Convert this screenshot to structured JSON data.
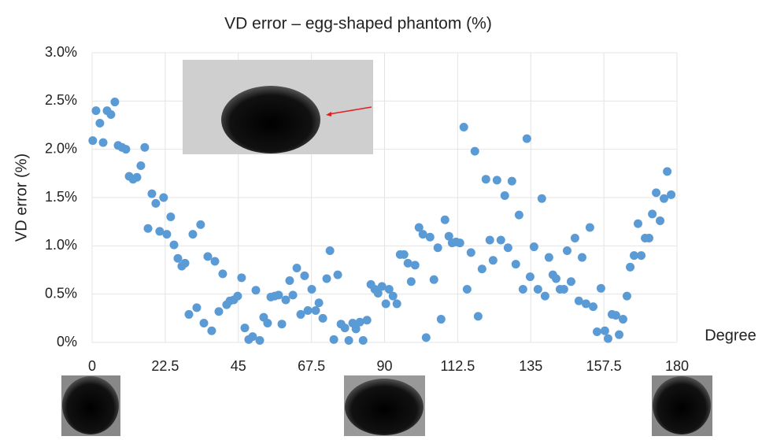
{
  "chart_data": {
    "type": "scatter",
    "title": "VD error – egg-shaped phantom (%)",
    "x_label": "Degree",
    "y_label": "VD error (%)",
    "series": [
      {
        "color": "#5b9bd5",
        "x": [
          0.2,
          1.2,
          2.4,
          3.4,
          4.6,
          5.8,
          7,
          8,
          9.2,
          10.4,
          11.4,
          12.6,
          13.8,
          15,
          16.2,
          17.2,
          18.4,
          19.6,
          20.8,
          22,
          23,
          24.2,
          25.2,
          26.4,
          27.6,
          28.6,
          29.8,
          31,
          32.2,
          33.4,
          34.4,
          35.6,
          36.8,
          37.8,
          39,
          40.2,
          41.4,
          42.4,
          43.6,
          44.8,
          46,
          47,
          48.2,
          49.4,
          50.4,
          51.6,
          52.8,
          54,
          55,
          56.2,
          57.4,
          58.4,
          59.6,
          60.8,
          61.8,
          63,
          64.2,
          65.4,
          66.4,
          67.6,
          68.8,
          69.8,
          71,
          72.2,
          73.2,
          74.4,
          75.6,
          76.6,
          77.8,
          79,
          80.2,
          81.2,
          82.4,
          83.4,
          84.6,
          85.8,
          87,
          88,
          89.2,
          90.4,
          91.4,
          92.6,
          93.8,
          94.8,
          96,
          97.2,
          98.2,
          99.4,
          100.6,
          101.8,
          102.8,
          104,
          105.2,
          106.4,
          107.4,
          108.6,
          109.8,
          110.8,
          112,
          113.2,
          114.4,
          115.4,
          116.6,
          117.8,
          118.8,
          120,
          121.2,
          122.4,
          123.4,
          124.6,
          125.8,
          127,
          128,
          129.2,
          130.4,
          131.4,
          132.6,
          133.8,
          134.8,
          136,
          137.2,
          138.4,
          139.4,
          140.6,
          141.8,
          142.8,
          144,
          145.2,
          146.2,
          147.4,
          148.6,
          149.8,
          150.8,
          152,
          153.2,
          154.2,
          155.4,
          156.6,
          157.8,
          158.8,
          160,
          161.2,
          162.2,
          163.4,
          164.6,
          165.6,
          166.8,
          168,
          169,
          170.2,
          171.4,
          172.4,
          173.6,
          174.8,
          176,
          177,
          178.2
        ],
        "values": [
          2.09,
          2.4,
          2.27,
          2.07,
          2.4,
          2.36,
          2.49,
          2.04,
          2.02,
          2.0,
          1.72,
          1.69,
          1.71,
          1.83,
          2.02,
          1.18,
          1.54,
          1.44,
          1.15,
          1.5,
          1.12,
          1.3,
          1.01,
          0.87,
          0.79,
          0.82,
          0.29,
          1.12,
          0.36,
          1.22,
          0.2,
          0.89,
          0.12,
          0.84,
          0.32,
          0.71,
          0.39,
          0.43,
          0.44,
          0.48,
          0.67,
          0.15,
          0.03,
          0.06,
          0.54,
          0.02,
          0.26,
          0.2,
          0.47,
          0.48,
          0.49,
          0.19,
          0.44,
          0.64,
          0.49,
          0.77,
          0.29,
          0.69,
          0.33,
          0.55,
          0.33,
          0.41,
          0.25,
          0.66,
          0.95,
          0.03,
          0.7,
          0.19,
          0.15,
          0.02,
          0.2,
          0.14,
          0.21,
          0.02,
          0.23,
          0.6,
          0.55,
          0.51,
          0.58,
          0.4,
          0.55,
          0.48,
          0.4,
          0.91,
          0.91,
          0.82,
          0.63,
          0.8,
          1.19,
          1.12,
          0.05,
          1.09,
          0.65,
          0.98,
          0.24,
          1.27,
          1.1,
          1.03,
          1.04,
          1.03,
          2.23,
          0.55,
          0.93,
          1.98,
          0.27,
          0.76,
          1.69,
          1.06,
          0.85,
          1.68,
          1.06,
          1.52,
          0.98,
          1.67,
          0.81,
          1.32,
          0.55,
          2.11,
          0.68,
          0.99,
          0.55,
          1.49,
          0.48,
          0.88,
          0.7,
          0.66,
          0.55,
          0.55,
          0.95,
          0.63,
          1.08,
          0.43,
          0.88,
          0.4,
          1.19,
          0.37,
          0.11,
          0.56,
          0.12,
          0.04,
          0.29,
          0.28,
          0.08,
          0.24,
          0.48,
          0.78,
          0.9,
          1.23,
          0.9,
          1.08,
          1.08,
          1.33,
          1.55,
          1.26,
          1.49,
          1.77,
          1.53
        ]
      }
    ],
    "xlim": [
      0,
      180
    ],
    "xticks": [
      0,
      22.5,
      45,
      67.5,
      90,
      112.5,
      135,
      157.5,
      180
    ],
    "ylim": [
      0,
      3
    ],
    "yticks": [
      {
        "value": 0,
        "label": "0%"
      },
      {
        "value": 0.5,
        "label": "0.5%"
      },
      {
        "value": 1,
        "label": "1.0%"
      },
      {
        "value": 1.5,
        "label": "1.5%"
      },
      {
        "value": 2,
        "label": "2.0%"
      },
      {
        "value": 2.5,
        "label": "2.5%"
      },
      {
        "value": 3,
        "label": "3.0%"
      }
    ],
    "grid": true
  }
}
